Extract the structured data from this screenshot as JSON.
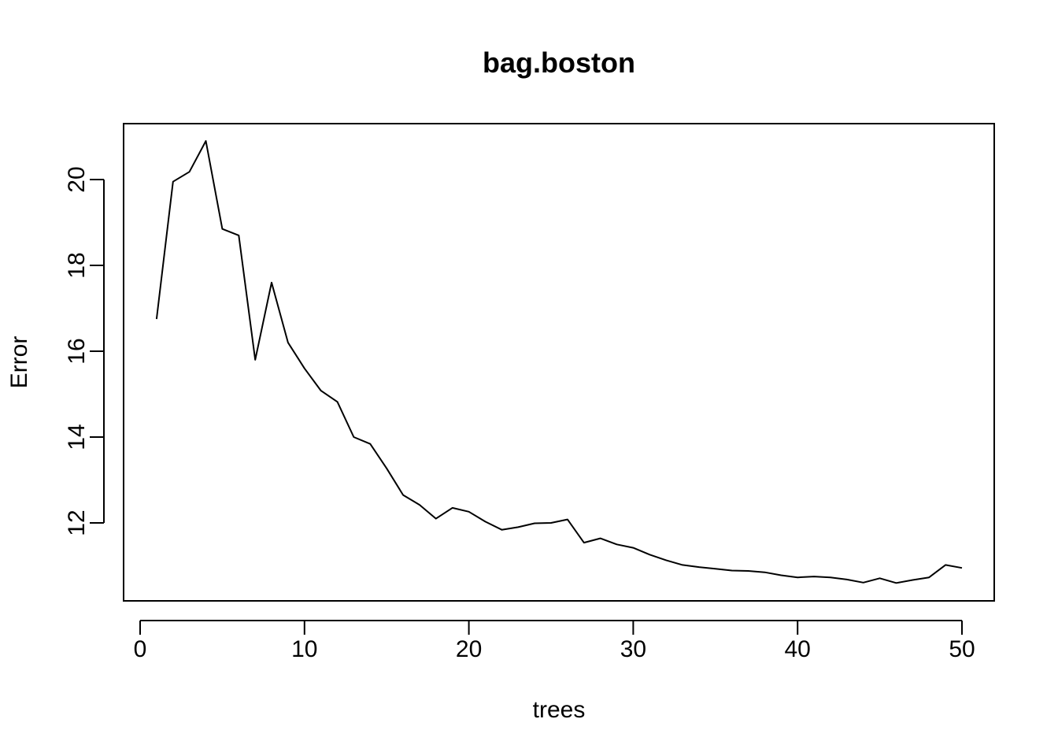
{
  "chart_data": {
    "type": "line",
    "title": "bag.boston",
    "xlabel": "trees",
    "ylabel": "Error",
    "xlim": [
      0,
      50
    ],
    "ylim": [
      10.4,
      21.0
    ],
    "xticks": [
      0,
      10,
      20,
      30,
      40,
      50
    ],
    "yticks": [
      12,
      14,
      16,
      18,
      20
    ],
    "grid": false,
    "line_color": "#000000",
    "series": [
      {
        "x": [
          1,
          2,
          3,
          4,
          5,
          6,
          7,
          8,
          9,
          10,
          11,
          12,
          13,
          14,
          15,
          16,
          17,
          18,
          19,
          20,
          21,
          22,
          23,
          24,
          25,
          26,
          27,
          28,
          29,
          30,
          31,
          32,
          33,
          34,
          35,
          36,
          37,
          38,
          39,
          40,
          41,
          42,
          43,
          44,
          45,
          46,
          47,
          48,
          49,
          50
        ],
        "values": [
          16.75,
          19.95,
          20.18,
          20.9,
          18.85,
          18.7,
          15.8,
          17.6,
          16.2,
          15.6,
          15.08,
          14.82,
          14.0,
          13.84,
          13.27,
          12.65,
          12.42,
          12.1,
          12.35,
          12.26,
          12.03,
          11.84,
          11.9,
          11.99,
          12.0,
          12.08,
          11.54,
          11.64,
          11.5,
          11.42,
          11.26,
          11.13,
          11.02,
          10.97,
          10.93,
          10.89,
          10.88,
          10.85,
          10.78,
          10.73,
          10.75,
          10.73,
          10.68,
          10.61,
          10.71,
          10.6,
          10.67,
          10.73,
          11.02,
          10.95
        ]
      }
    ]
  }
}
